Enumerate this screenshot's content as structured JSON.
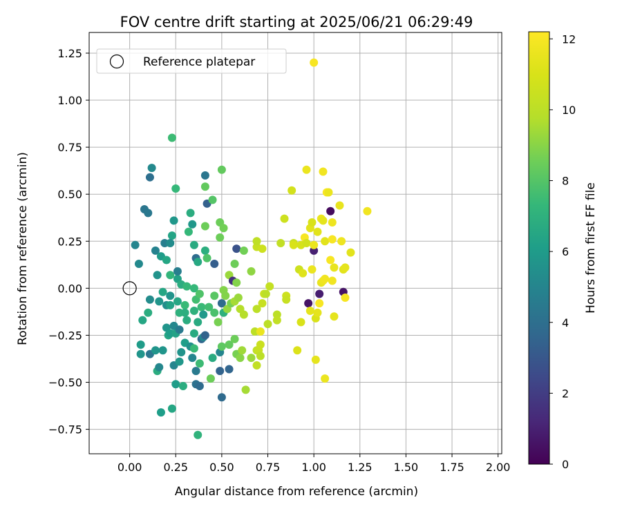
{
  "chart_data": {
    "type": "scatter",
    "title": "FOV centre drift starting at 2025/06/21 06:29:49",
    "xlabel": "Angular distance from reference (arcmin)",
    "ylabel": "Rotation from reference (arcmin)",
    "xlim": [
      -0.22,
      2.02
    ],
    "ylim": [
      -0.88,
      1.36
    ],
    "xticks": [
      0.0,
      0.25,
      0.5,
      0.75,
      1.0,
      1.25,
      1.5,
      1.75,
      2.0
    ],
    "xtick_labels": [
      "0.00",
      "0.25",
      "0.50",
      "0.75",
      "1.00",
      "1.25",
      "1.50",
      "1.75",
      "2.00"
    ],
    "yticks": [
      -0.75,
      -0.5,
      -0.25,
      0.0,
      0.25,
      0.5,
      0.75,
      1.0,
      1.25
    ],
    "ytick_labels": [
      "−0.75",
      "−0.50",
      "−0.25",
      "0.00",
      "0.25",
      "0.50",
      "0.75",
      "1.00",
      "1.25"
    ],
    "grid": true,
    "legend": {
      "placement": "top-left",
      "entries": [
        "Reference platepar"
      ]
    },
    "reference_point": {
      "x": 0.0,
      "y": 0.0,
      "label": "Reference platepar"
    },
    "colorbar": {
      "label": "Hours from first FF file",
      "min": 0,
      "max": 12.2,
      "ticks": [
        0,
        2,
        4,
        6,
        8,
        10,
        12
      ],
      "tick_labels": [
        "0",
        "2",
        "4",
        "6",
        "8",
        "10",
        "12"
      ],
      "colormap": "viridis"
    },
    "points": [
      {
        "x": 0.03,
        "y": 0.23,
        "c": 5.0
      },
      {
        "x": 0.05,
        "y": 0.13,
        "c": 5.2
      },
      {
        "x": 0.08,
        "y": 0.42,
        "c": 4.3
      },
      {
        "x": 0.1,
        "y": 0.4,
        "c": 4.4
      },
      {
        "x": 0.11,
        "y": 0.59,
        "c": 4.0
      },
      {
        "x": 0.12,
        "y": 0.64,
        "c": 5.2
      },
      {
        "x": 0.07,
        "y": -0.17,
        "c": 6.5
      },
      {
        "x": 0.1,
        "y": -0.13,
        "c": 6.8
      },
      {
        "x": 0.11,
        "y": -0.06,
        "c": 5.3
      },
      {
        "x": 0.06,
        "y": -0.3,
        "c": 6.0
      },
      {
        "x": 0.06,
        "y": -0.35,
        "c": 5.7
      },
      {
        "x": 0.11,
        "y": -0.35,
        "c": 4.3
      },
      {
        "x": 0.14,
        "y": 0.2,
        "c": 4.9
      },
      {
        "x": 0.15,
        "y": 0.07,
        "c": 5.6
      },
      {
        "x": 0.16,
        "y": -0.07,
        "c": 5.7
      },
      {
        "x": 0.14,
        "y": -0.33,
        "c": 5.7
      },
      {
        "x": 0.15,
        "y": -0.44,
        "c": 6.8
      },
      {
        "x": 0.16,
        "y": -0.42,
        "c": 5.1
      },
      {
        "x": 0.17,
        "y": 0.17,
        "c": 6.0
      },
      {
        "x": 0.18,
        "y": -0.02,
        "c": 6.5
      },
      {
        "x": 0.18,
        "y": -0.33,
        "c": 5.7
      },
      {
        "x": 0.17,
        "y": -0.66,
        "c": 6.1
      },
      {
        "x": 0.2,
        "y": 0.15,
        "c": 6.5
      },
      {
        "x": 0.19,
        "y": 0.24,
        "c": 4.7
      },
      {
        "x": 0.2,
        "y": -0.09,
        "c": 5.4
      },
      {
        "x": 0.2,
        "y": -0.21,
        "c": 5.7
      },
      {
        "x": 0.21,
        "y": -0.25,
        "c": 6.5
      },
      {
        "x": 0.22,
        "y": -0.04,
        "c": 5.6
      },
      {
        "x": 0.22,
        "y": -0.09,
        "c": 6.3
      },
      {
        "x": 0.22,
        "y": -0.24,
        "c": 6.1
      },
      {
        "x": 0.23,
        "y": 0.28,
        "c": 6.4
      },
      {
        "x": 0.22,
        "y": 0.24,
        "c": 5.3
      },
      {
        "x": 0.23,
        "y": 0.8,
        "c": 7.5
      },
      {
        "x": 0.22,
        "y": 0.07,
        "c": 7.2
      },
      {
        "x": 0.24,
        "y": 0.36,
        "c": 5.8
      },
      {
        "x": 0.24,
        "y": -0.2,
        "c": 5.1
      },
      {
        "x": 0.23,
        "y": -0.64,
        "c": 6.5
      },
      {
        "x": 0.24,
        "y": -0.41,
        "c": 5.0
      },
      {
        "x": 0.25,
        "y": 0.53,
        "c": 7.3
      },
      {
        "x": 0.25,
        "y": -0.24,
        "c": 6.3
      },
      {
        "x": 0.25,
        "y": -0.51,
        "c": 6.0
      },
      {
        "x": 0.26,
        "y": 0.05,
        "c": 6.3
      },
      {
        "x": 0.26,
        "y": 0.09,
        "c": 4.7
      },
      {
        "x": 0.26,
        "y": -0.07,
        "c": 6.5
      },
      {
        "x": 0.27,
        "y": -0.13,
        "c": 7.0
      },
      {
        "x": 0.27,
        "y": -0.22,
        "c": 4.5
      },
      {
        "x": 0.27,
        "y": -0.39,
        "c": 5.8
      },
      {
        "x": 0.28,
        "y": 0.02,
        "c": 6.8
      },
      {
        "x": 0.28,
        "y": -0.34,
        "c": 5.6
      },
      {
        "x": 0.29,
        "y": -0.52,
        "c": 6.8
      },
      {
        "x": 0.3,
        "y": -0.09,
        "c": 7.4
      },
      {
        "x": 0.3,
        "y": -0.13,
        "c": 6.9
      },
      {
        "x": 0.3,
        "y": -0.29,
        "c": 6.1
      },
      {
        "x": 0.31,
        "y": 0.01,
        "c": 7.3
      },
      {
        "x": 0.31,
        "y": -0.17,
        "c": 6.8
      },
      {
        "x": 0.32,
        "y": 0.3,
        "c": 7.3
      },
      {
        "x": 0.33,
        "y": 0.4,
        "c": 6.8
      },
      {
        "x": 0.33,
        "y": -0.31,
        "c": 5.5
      },
      {
        "x": 0.34,
        "y": 0.34,
        "c": 5.8
      },
      {
        "x": 0.34,
        "y": -0.37,
        "c": 5.0
      },
      {
        "x": 0.35,
        "y": 0.23,
        "c": 6.7
      },
      {
        "x": 0.35,
        "y": 0.0,
        "c": 7.3
      },
      {
        "x": 0.35,
        "y": -0.12,
        "c": 7.0
      },
      {
        "x": 0.35,
        "y": -0.24,
        "c": 6.7
      },
      {
        "x": 0.35,
        "y": -0.32,
        "c": 7.4
      },
      {
        "x": 0.36,
        "y": 0.16,
        "c": 3.9
      },
      {
        "x": 0.36,
        "y": -0.06,
        "c": 7.6
      },
      {
        "x": 0.36,
        "y": -0.44,
        "c": 4.5
      },
      {
        "x": 0.36,
        "y": -0.51,
        "c": 4.1
      },
      {
        "x": 0.37,
        "y": -0.78,
        "c": 7.1
      },
      {
        "x": 0.37,
        "y": 0.14,
        "c": 6.6
      },
      {
        "x": 0.37,
        "y": -0.18,
        "c": 6.7
      },
      {
        "x": 0.38,
        "y": -0.03,
        "c": 7.9
      },
      {
        "x": 0.38,
        "y": -0.4,
        "c": 7.5
      },
      {
        "x": 0.38,
        "y": -0.52,
        "c": 3.8
      },
      {
        "x": 0.39,
        "y": -0.1,
        "c": 7.4
      },
      {
        "x": 0.39,
        "y": -0.27,
        "c": 3.6
      },
      {
        "x": 0.4,
        "y": -0.14,
        "c": 5.9
      },
      {
        "x": 0.4,
        "y": -0.26,
        "c": 5.0
      },
      {
        "x": 0.41,
        "y": 0.54,
        "c": 8.3
      },
      {
        "x": 0.41,
        "y": -0.25,
        "c": 3.5
      },
      {
        "x": 0.41,
        "y": 0.6,
        "c": 4.3
      },
      {
        "x": 0.41,
        "y": 0.33,
        "c": 8.5
      },
      {
        "x": 0.41,
        "y": 0.2,
        "c": 6.9
      },
      {
        "x": 0.42,
        "y": 0.45,
        "c": 3.4
      },
      {
        "x": 0.42,
        "y": 0.16,
        "c": 7.9
      },
      {
        "x": 0.43,
        "y": -0.1,
        "c": 7.6
      },
      {
        "x": 0.44,
        "y": -0.48,
        "c": 8.5
      },
      {
        "x": 0.45,
        "y": -0.37,
        "c": 6.7
      },
      {
        "x": 0.45,
        "y": 0.47,
        "c": 8.0
      },
      {
        "x": 0.46,
        "y": 0.13,
        "c": 3.3
      },
      {
        "x": 0.46,
        "y": -0.04,
        "c": 8.1
      },
      {
        "x": 0.46,
        "y": -0.13,
        "c": 7.8
      },
      {
        "x": 0.48,
        "y": -0.18,
        "c": 8.7
      },
      {
        "x": 0.49,
        "y": -0.34,
        "c": 5.0
      },
      {
        "x": 0.49,
        "y": -0.44,
        "c": 3.5
      },
      {
        "x": 0.49,
        "y": 0.27,
        "c": 8.5
      },
      {
        "x": 0.49,
        "y": 0.35,
        "c": 8.5
      },
      {
        "x": 0.5,
        "y": -0.08,
        "c": 3.8
      },
      {
        "x": 0.5,
        "y": -0.31,
        "c": 8.2
      },
      {
        "x": 0.5,
        "y": -0.58,
        "c": 3.8
      },
      {
        "x": 0.5,
        "y": 0.63,
        "c": 8.3
      },
      {
        "x": 0.51,
        "y": -0.13,
        "c": 7.0
      },
      {
        "x": 0.51,
        "y": 0.32,
        "c": 8.6
      },
      {
        "x": 0.51,
        "y": -0.01,
        "c": 8.9
      },
      {
        "x": 0.52,
        "y": -0.04,
        "c": 8.9
      },
      {
        "x": 0.53,
        "y": -0.11,
        "c": 9.2
      },
      {
        "x": 0.54,
        "y": 0.07,
        "c": 9.3
      },
      {
        "x": 0.54,
        "y": -0.3,
        "c": 8.3
      },
      {
        "x": 0.54,
        "y": -0.43,
        "c": 3.6
      },
      {
        "x": 0.55,
        "y": -0.08,
        "c": 8.7
      },
      {
        "x": 0.56,
        "y": 0.04,
        "c": 1.6
      },
      {
        "x": 0.57,
        "y": -0.07,
        "c": 9.5
      },
      {
        "x": 0.57,
        "y": -0.27,
        "c": 8.5
      },
      {
        "x": 0.57,
        "y": 0.13,
        "c": 8.5
      },
      {
        "x": 0.58,
        "y": 0.21,
        "c": 2.8
      },
      {
        "x": 0.58,
        "y": -0.35,
        "c": 8.7
      },
      {
        "x": 0.58,
        "y": 0.03,
        "c": 8.9
      },
      {
        "x": 0.59,
        "y": -0.05,
        "c": 9.3
      },
      {
        "x": 0.6,
        "y": -0.11,
        "c": 9.8
      },
      {
        "x": 0.6,
        "y": -0.37,
        "c": 9.0
      },
      {
        "x": 0.61,
        "y": -0.33,
        "c": 9.4
      },
      {
        "x": 0.62,
        "y": 0.2,
        "c": 8.6
      },
      {
        "x": 0.62,
        "y": -0.14,
        "c": 9.8
      },
      {
        "x": 0.63,
        "y": -0.54,
        "c": 9.5
      },
      {
        "x": 0.66,
        "y": -0.37,
        "c": 9.3
      },
      {
        "x": 0.66,
        "y": 0.09,
        "c": 9.1
      },
      {
        "x": 0.68,
        "y": -0.23,
        "c": 10.0
      },
      {
        "x": 0.69,
        "y": 0.22,
        "c": 10.4
      },
      {
        "x": 0.69,
        "y": 0.25,
        "c": 10.1
      },
      {
        "x": 0.69,
        "y": -0.11,
        "c": 10.0
      },
      {
        "x": 0.69,
        "y": -0.41,
        "c": 10.2
      },
      {
        "x": 0.69,
        "y": -0.33,
        "c": 10.1
      },
      {
        "x": 0.7,
        "y": -0.33,
        "c": 10.4
      },
      {
        "x": 0.71,
        "y": -0.23,
        "c": 11.6
      },
      {
        "x": 0.71,
        "y": -0.36,
        "c": 10.0
      },
      {
        "x": 0.71,
        "y": -0.3,
        "c": 10.5
      },
      {
        "x": 0.72,
        "y": 0.21,
        "c": 10.6
      },
      {
        "x": 0.72,
        "y": -0.08,
        "c": 10.4
      },
      {
        "x": 0.73,
        "y": -0.03,
        "c": 10.5
      },
      {
        "x": 0.74,
        "y": -0.03,
        "c": 10.0
      },
      {
        "x": 0.75,
        "y": -0.19,
        "c": 10.0
      },
      {
        "x": 0.76,
        "y": 0.01,
        "c": 10.3
      },
      {
        "x": 0.8,
        "y": -0.14,
        "c": 10.0
      },
      {
        "x": 0.8,
        "y": -0.17,
        "c": 10.2
      },
      {
        "x": 0.82,
        "y": 0.24,
        "c": 10.2
      },
      {
        "x": 0.84,
        "y": 0.37,
        "c": 10.6
      },
      {
        "x": 0.85,
        "y": -0.04,
        "c": 10.6
      },
      {
        "x": 0.85,
        "y": -0.06,
        "c": 10.4
      },
      {
        "x": 0.88,
        "y": 0.52,
        "c": 10.8
      },
      {
        "x": 0.89,
        "y": 0.24,
        "c": 10.5
      },
      {
        "x": 0.89,
        "y": 0.23,
        "c": 11.0
      },
      {
        "x": 0.91,
        "y": -0.33,
        "c": 11.1
      },
      {
        "x": 0.92,
        "y": 0.1,
        "c": 10.6
      },
      {
        "x": 0.93,
        "y": -0.18,
        "c": 11.0
      },
      {
        "x": 0.93,
        "y": 0.23,
        "c": 10.9
      },
      {
        "x": 0.94,
        "y": 0.08,
        "c": 11.2
      },
      {
        "x": 0.95,
        "y": 0.27,
        "c": 12.0
      },
      {
        "x": 0.96,
        "y": 0.63,
        "c": 11.6
      },
      {
        "x": 0.96,
        "y": 0.24,
        "c": 10.7
      },
      {
        "x": 0.97,
        "y": -0.08,
        "c": 0.6
      },
      {
        "x": 0.98,
        "y": 0.32,
        "c": 11.3
      },
      {
        "x": 0.98,
        "y": -0.12,
        "c": 11.4
      },
      {
        "x": 0.99,
        "y": 0.35,
        "c": 11.0
      },
      {
        "x": 0.99,
        "y": 0.1,
        "c": 11.6
      },
      {
        "x": 1.0,
        "y": 1.2,
        "c": 12.0
      },
      {
        "x": 1.0,
        "y": 0.2,
        "c": 1.0
      },
      {
        "x": 1.0,
        "y": 0.23,
        "c": 11.6
      },
      {
        "x": 1.01,
        "y": -0.16,
        "c": 11.0
      },
      {
        "x": 1.01,
        "y": -0.38,
        "c": 11.4
      },
      {
        "x": 1.02,
        "y": 0.3,
        "c": 11.3
      },
      {
        "x": 1.02,
        "y": -0.13,
        "c": 11.4
      },
      {
        "x": 1.03,
        "y": -0.08,
        "c": 12.0
      },
      {
        "x": 1.03,
        "y": -0.03,
        "c": 0.9
      },
      {
        "x": 1.04,
        "y": 0.37,
        "c": 11.6
      },
      {
        "x": 1.04,
        "y": 0.03,
        "c": 11.5
      },
      {
        "x": 1.05,
        "y": 0.62,
        "c": 11.8
      },
      {
        "x": 1.05,
        "y": 0.04,
        "c": 11.7
      },
      {
        "x": 1.05,
        "y": 0.36,
        "c": 11.4
      },
      {
        "x": 1.06,
        "y": -0.48,
        "c": 11.6
      },
      {
        "x": 1.06,
        "y": 0.05,
        "c": 11.8
      },
      {
        "x": 1.06,
        "y": 0.25,
        "c": 11.3
      },
      {
        "x": 1.07,
        "y": 0.51,
        "c": 12.1
      },
      {
        "x": 1.08,
        "y": 0.51,
        "c": 11.6
      },
      {
        "x": 1.09,
        "y": 0.41,
        "c": 0.3
      },
      {
        "x": 1.09,
        "y": 0.15,
        "c": 12.0
      },
      {
        "x": 1.1,
        "y": 0.35,
        "c": 11.7
      },
      {
        "x": 1.1,
        "y": 0.26,
        "c": 12.0
      },
      {
        "x": 1.1,
        "y": 0.04,
        "c": 11.8
      },
      {
        "x": 1.11,
        "y": 0.11,
        "c": 11.5
      },
      {
        "x": 1.11,
        "y": -0.15,
        "c": 11.4
      },
      {
        "x": 1.14,
        "y": 0.44,
        "c": 11.5
      },
      {
        "x": 1.15,
        "y": 0.25,
        "c": 11.7
      },
      {
        "x": 1.16,
        "y": -0.02,
        "c": 0.6
      },
      {
        "x": 1.16,
        "y": 0.1,
        "c": 11.3
      },
      {
        "x": 1.17,
        "y": -0.05,
        "c": 12.0
      },
      {
        "x": 1.17,
        "y": 0.11,
        "c": 11.4
      },
      {
        "x": 1.2,
        "y": 0.19,
        "c": 11.3
      },
      {
        "x": 1.29,
        "y": 0.41,
        "c": 11.8
      }
    ]
  }
}
